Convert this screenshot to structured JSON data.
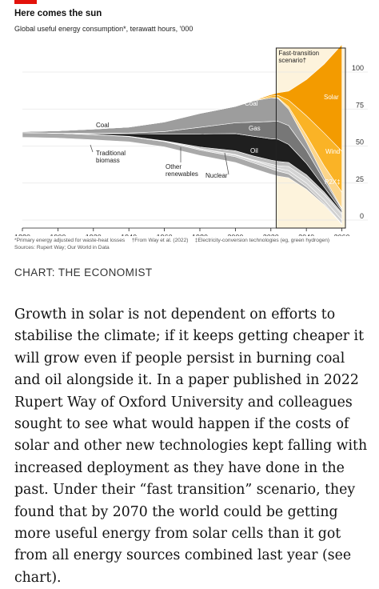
{
  "header": {
    "title": "Here comes the sun",
    "subtitle": "Global useful energy consumption*, terawatt hours, '000"
  },
  "chart_data": {
    "type": "area",
    "title": "Here comes the sun",
    "subtitle": "Global useful energy consumption*, terawatt hours, '000",
    "x_ticks": [
      1880,
      1900,
      1920,
      1940,
      1960,
      1980,
      2000,
      2020,
      2040,
      2060
    ],
    "y_ticks": [
      0,
      25,
      50,
      75,
      100
    ],
    "ylim": [
      0,
      100
    ],
    "xlim": [
      1880,
      2062
    ],
    "grid": true,
    "scenario": {
      "label": "Fast-transition scenario†",
      "label_lines": [
        "Fast-transition",
        "scenario†"
      ],
      "start": 2023
    },
    "series_labels": [
      {
        "key": "coal_hist",
        "text": "Coal"
      },
      {
        "key": "traditional",
        "text": "Traditional biomass",
        "lines": [
          "Traditional",
          "biomass"
        ]
      },
      {
        "key": "other_ren",
        "text": "Other renewables",
        "lines": [
          "Other",
          "renewables"
        ]
      },
      {
        "key": "nuclear",
        "text": "Nuclear"
      },
      {
        "key": "coal",
        "text": "Coal"
      },
      {
        "key": "gas",
        "text": "Gas"
      },
      {
        "key": "oil",
        "text": "Oil"
      },
      {
        "key": "solar",
        "text": "Solar"
      },
      {
        "key": "wind",
        "text": "Wind"
      },
      {
        "key": "p2x",
        "text": "P2X‡"
      }
    ],
    "x": [
      1880,
      1900,
      1920,
      1940,
      1960,
      1980,
      2000,
      2010,
      2020,
      2024,
      2030,
      2040,
      2050,
      2060
    ],
    "series": [
      {
        "key": "traditional",
        "color": "#a9a9a9",
        "values": [
          2.8,
          3.0,
          3.1,
          3.2,
          3.2,
          3.4,
          3.5,
          3.5,
          3.3,
          3.0,
          2.4,
          1.6,
          0.8,
          0.3
        ]
      },
      {
        "key": "hydro",
        "color": "#cfcfcf",
        "values": [
          0,
          0,
          0.1,
          0.2,
          0.4,
          0.7,
          1.0,
          1.3,
          1.6,
          1.7,
          2.0,
          2.2,
          2.3,
          2.4
        ]
      },
      {
        "key": "other_ren",
        "color": "#d4d4d4",
        "values": [
          0,
          0,
          0,
          0,
          0,
          0.1,
          0.3,
          0.5,
          1.2,
          1.6,
          2.5,
          3.0,
          3.2,
          3.4
        ]
      },
      {
        "key": "nuclear",
        "color": "#bdbdbd",
        "values": [
          0,
          0,
          0,
          0,
          0,
          1.0,
          2.3,
          2.4,
          2.5,
          2.6,
          2.4,
          2.0,
          1.5,
          1.0
        ]
      },
      {
        "key": "oil",
        "color": "#1f1f1f",
        "values": [
          0,
          0,
          0.5,
          1.6,
          4.2,
          8.0,
          10.5,
          12.0,
          13.0,
          13.5,
          11.0,
          7.0,
          3.0,
          1.0
        ]
      },
      {
        "key": "gas",
        "color": "#777777",
        "values": [
          0,
          0,
          0.2,
          0.4,
          1.5,
          4.0,
          6.5,
          8.5,
          10.5,
          11.0,
          11.5,
          8.0,
          4.0,
          1.0
        ]
      },
      {
        "key": "coal",
        "color": "#9d9d9d",
        "values": [
          0.6,
          1.4,
          2.6,
          3.6,
          5.8,
          8.5,
          10.0,
          13.0,
          14.5,
          14.0,
          10.0,
          5.0,
          2.0,
          0.5
        ]
      },
      {
        "key": "p2x",
        "color": "#fbd58b",
        "values": [
          0,
          0,
          0,
          0,
          0,
          0,
          0,
          0,
          0,
          0.3,
          1.5,
          4.0,
          7.0,
          10.0
        ]
      },
      {
        "key": "wind",
        "color": "#fab326",
        "values": [
          0,
          0,
          0,
          0,
          0,
          0,
          0,
          0.2,
          1.0,
          1.5,
          4.0,
          12.0,
          20.0,
          25.0
        ]
      },
      {
        "key": "solar",
        "color": "#f39b00",
        "values": [
          0,
          0,
          0,
          0,
          0,
          0,
          0,
          0.1,
          0.8,
          1.5,
          5.5,
          22.0,
          42.0,
          65.0
        ]
      }
    ]
  },
  "footnote": "*Primary energy adjusted for waste-heat losses  †From Way et al. (2022)  ‡Electricity-conversion technologies (eg, green hydrogen)",
  "sources": "Sources: Rupert Way; Our World in Data",
  "credit": "CHART: THE ECONOMIST",
  "article_text": "Growth in solar is not dependent on efforts to stabilise the climate; if it keeps getting cheaper it will grow even if people persist in burning coal and oil alongside it. In a paper published in 2022 Rupert Way of Oxford University and colleagues sought to see what would happen if the costs of solar and other new technologies kept falling with increased deployment as they have done in the past. Under their “fast transition” scenario, they found that by 2070 the world could be getting more useful energy from solar cells than it got from all energy sources combined last year (see chart).",
  "colors": {
    "brand_red": "#e3120b",
    "scenario_bg": "#fdf3dc",
    "frame": "#222222"
  }
}
